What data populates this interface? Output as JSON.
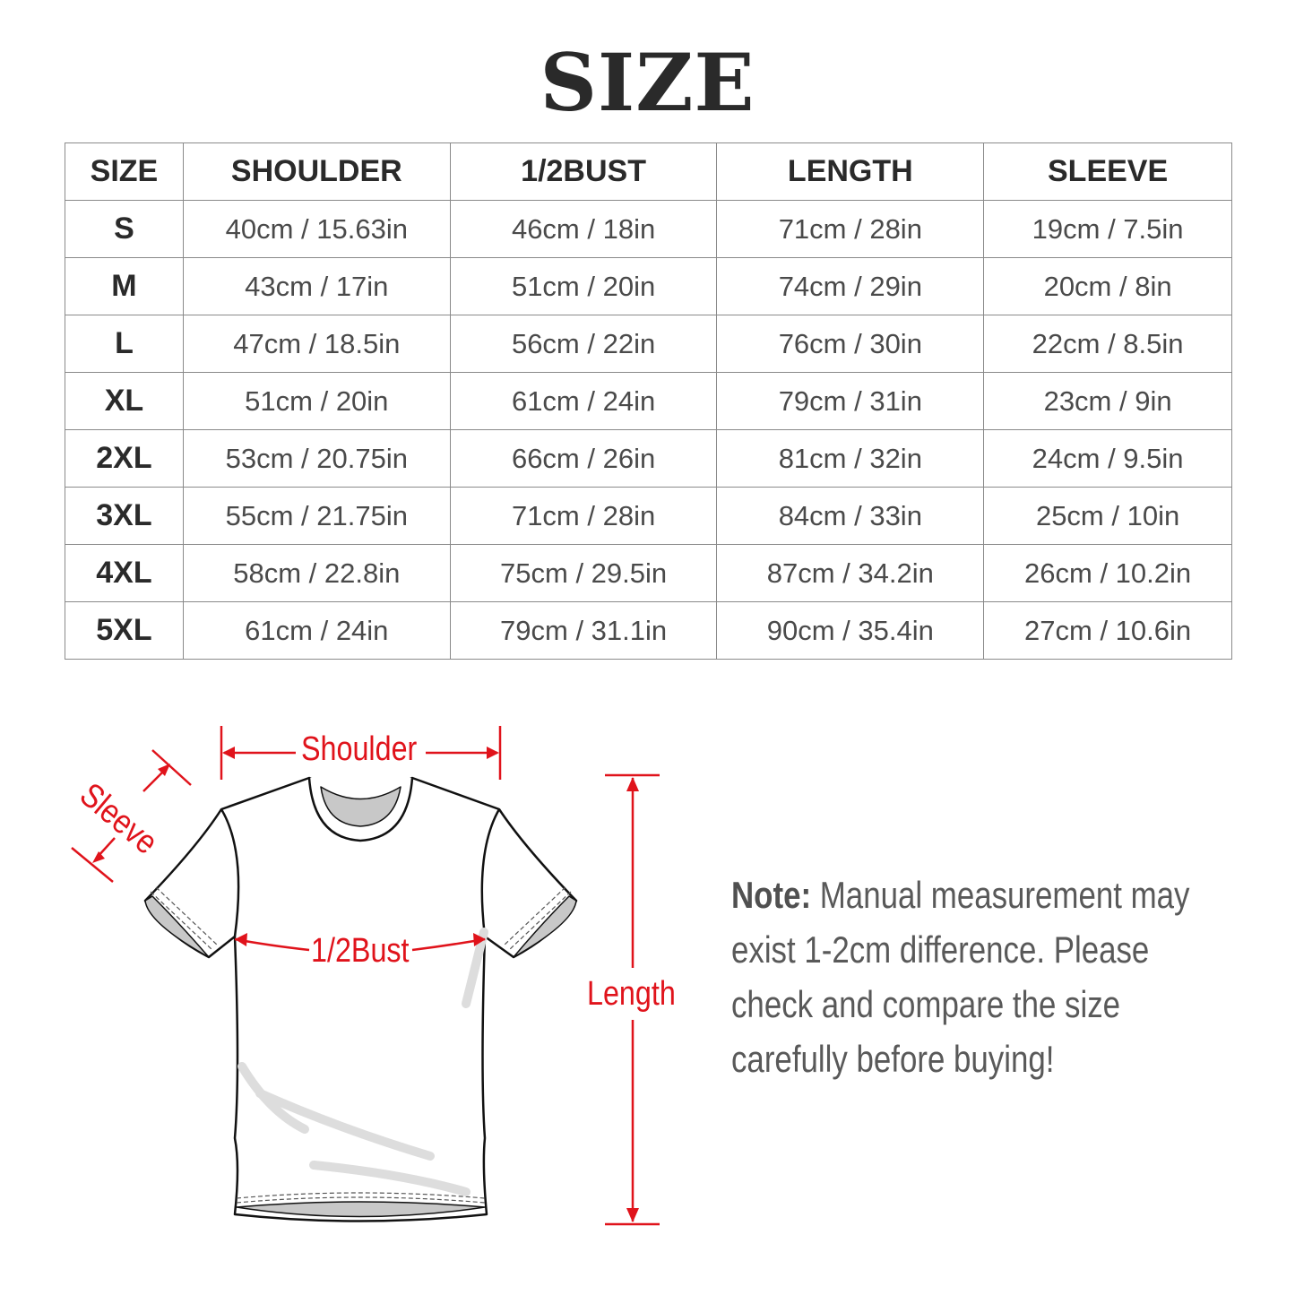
{
  "title": "SIZE",
  "table": {
    "headers": [
      "SIZE",
      "SHOULDER",
      "1/2BUST",
      "LENGTH",
      "SLEEVE"
    ],
    "rows": [
      [
        "S",
        "40cm / 15.63in",
        "46cm / 18in",
        "71cm / 28in",
        "19cm / 7.5in"
      ],
      [
        "M",
        "43cm / 17in",
        "51cm / 20in",
        "74cm / 29in",
        "20cm / 8in"
      ],
      [
        "L",
        "47cm / 18.5in",
        "56cm / 22in",
        "76cm / 30in",
        "22cm / 8.5in"
      ],
      [
        "XL",
        "51cm / 20in",
        "61cm / 24in",
        "79cm / 31in",
        "23cm / 9in"
      ],
      [
        "2XL",
        "53cm / 20.75in",
        "66cm / 26in",
        "81cm / 32in",
        "24cm / 9.5in"
      ],
      [
        "3XL",
        "55cm / 21.75in",
        "71cm / 28in",
        "84cm / 33in",
        "25cm / 10in"
      ],
      [
        "4XL",
        "58cm / 22.8in",
        "75cm / 29.5in",
        "87cm / 34.2in",
        "26cm / 10.2in"
      ],
      [
        "5XL",
        "61cm / 24in",
        "79cm / 31.1in",
        "90cm / 35.4in",
        "27cm / 10.6in"
      ]
    ]
  },
  "diagram": {
    "shoulder": "Shoulder",
    "sleeve": "Sleeve",
    "bust": "1/2Bust",
    "length": "Length",
    "accent_color": "#e0131b"
  },
  "note": {
    "label": "Note:",
    "text": "Manual measurement may exist 1-2cm difference. Please check and compare the size carefully before buying!"
  }
}
